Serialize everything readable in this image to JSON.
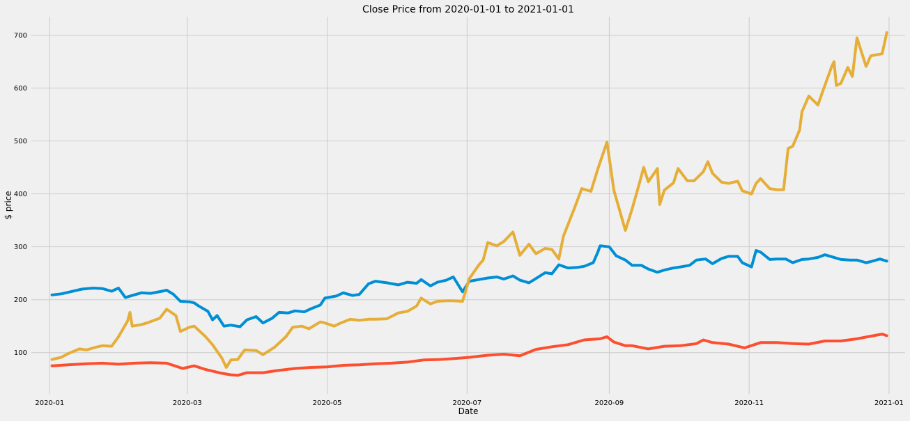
{
  "chart_data": {
    "type": "line",
    "title": "Close Price from 2020-01-01 to 2021-01-01",
    "xlabel": "Date",
    "ylabel": "$ price",
    "xlim": [
      "2019-12-24",
      "2021-01-08"
    ],
    "ylim": [
      22,
      735
    ],
    "x_ticks": [
      "2020-01",
      "2020-03",
      "2020-05",
      "2020-07",
      "2020-09",
      "2020-11",
      "2021-01"
    ],
    "y_ticks": [
      100,
      200,
      300,
      400,
      500,
      600,
      700
    ],
    "grid": true,
    "legend": "none",
    "series": [
      {
        "color": "#008fd5",
        "points": [
          [
            "2020-01-02",
            209
          ],
          [
            "2020-01-06",
            211
          ],
          [
            "2020-01-10",
            215
          ],
          [
            "2020-01-15",
            220
          ],
          [
            "2020-01-20",
            222
          ],
          [
            "2020-01-24",
            221
          ],
          [
            "2020-01-28",
            216
          ],
          [
            "2020-01-31",
            222
          ],
          [
            "2020-02-03",
            204
          ],
          [
            "2020-02-06",
            208
          ],
          [
            "2020-02-10",
            213
          ],
          [
            "2020-02-14",
            212
          ],
          [
            "2020-02-19",
            216
          ],
          [
            "2020-02-21",
            218
          ],
          [
            "2020-02-24",
            210
          ],
          [
            "2020-02-27",
            197
          ],
          [
            "2020-03-02",
            196
          ],
          [
            "2020-03-04",
            194
          ],
          [
            "2020-03-06",
            188
          ],
          [
            "2020-03-10",
            178
          ],
          [
            "2020-03-12",
            162
          ],
          [
            "2020-03-14",
            170
          ],
          [
            "2020-03-17",
            150
          ],
          [
            "2020-03-20",
            152
          ],
          [
            "2020-03-24",
            149
          ],
          [
            "2020-03-27",
            162
          ],
          [
            "2020-03-31",
            168
          ],
          [
            "2020-04-03",
            156
          ],
          [
            "2020-04-07",
            165
          ],
          [
            "2020-04-10",
            176
          ],
          [
            "2020-04-14",
            175
          ],
          [
            "2020-04-17",
            179
          ],
          [
            "2020-04-21",
            177
          ],
          [
            "2020-04-24",
            183
          ],
          [
            "2020-04-28",
            190
          ],
          [
            "2020-04-30",
            203
          ],
          [
            "2020-05-05",
            207
          ],
          [
            "2020-05-08",
            213
          ],
          [
            "2020-05-12",
            208
          ],
          [
            "2020-05-15",
            210
          ],
          [
            "2020-05-19",
            230
          ],
          [
            "2020-05-22",
            235
          ],
          [
            "2020-05-27",
            232
          ],
          [
            "2020-06-01",
            228
          ],
          [
            "2020-06-05",
            233
          ],
          [
            "2020-06-09",
            231
          ],
          [
            "2020-06-11",
            238
          ],
          [
            "2020-06-15",
            226
          ],
          [
            "2020-06-18",
            233
          ],
          [
            "2020-06-22",
            237
          ],
          [
            "2020-06-25",
            243
          ],
          [
            "2020-06-29",
            215
          ],
          [
            "2020-07-02",
            235
          ],
          [
            "2020-07-06",
            238
          ],
          [
            "2020-07-10",
            241
          ],
          [
            "2020-07-14",
            243
          ],
          [
            "2020-07-17",
            239
          ],
          [
            "2020-07-21",
            245
          ],
          [
            "2020-07-24",
            237
          ],
          [
            "2020-07-28",
            232
          ],
          [
            "2020-07-31",
            240
          ],
          [
            "2020-08-04",
            251
          ],
          [
            "2020-08-07",
            249
          ],
          [
            "2020-08-10",
            266
          ],
          [
            "2020-08-14",
            260
          ],
          [
            "2020-08-18",
            261
          ],
          [
            "2020-08-21",
            263
          ],
          [
            "2020-08-25",
            270
          ],
          [
            "2020-08-27",
            290
          ],
          [
            "2020-08-28",
            302
          ],
          [
            "2020-09-01",
            300
          ],
          [
            "2020-09-04",
            283
          ],
          [
            "2020-09-08",
            275
          ],
          [
            "2020-09-11",
            265
          ],
          [
            "2020-09-15",
            265
          ],
          [
            "2020-09-18",
            258
          ],
          [
            "2020-09-22",
            252
          ],
          [
            "2020-09-25",
            256
          ],
          [
            "2020-09-29",
            260
          ],
          [
            "2020-10-02",
            262
          ],
          [
            "2020-10-06",
            265
          ],
          [
            "2020-10-09",
            275
          ],
          [
            "2020-10-13",
            277
          ],
          [
            "2020-10-16",
            268
          ],
          [
            "2020-10-20",
            278
          ],
          [
            "2020-10-23",
            282
          ],
          [
            "2020-10-27",
            282
          ],
          [
            "2020-10-29",
            270
          ],
          [
            "2020-11-02",
            262
          ],
          [
            "2020-11-04",
            293
          ],
          [
            "2020-11-06",
            290
          ],
          [
            "2020-11-10",
            276
          ],
          [
            "2020-11-13",
            277
          ],
          [
            "2020-11-17",
            277
          ],
          [
            "2020-11-20",
            270
          ],
          [
            "2020-11-24",
            276
          ],
          [
            "2020-11-27",
            277
          ],
          [
            "2020-12-01",
            280
          ],
          [
            "2020-12-04",
            285
          ],
          [
            "2020-12-08",
            280
          ],
          [
            "2020-12-11",
            276
          ],
          [
            "2020-12-15",
            275
          ],
          [
            "2020-12-18",
            275
          ],
          [
            "2020-12-22",
            270
          ],
          [
            "2020-12-24",
            272
          ],
          [
            "2020-12-28",
            277
          ],
          [
            "2020-12-31",
            273
          ]
        ]
      },
      {
        "color": "#e5ae38",
        "points": [
          [
            "2020-01-02",
            87
          ],
          [
            "2020-01-06",
            91
          ],
          [
            "2020-01-09",
            98
          ],
          [
            "2020-01-14",
            107
          ],
          [
            "2020-01-17",
            105
          ],
          [
            "2020-01-21",
            110
          ],
          [
            "2020-01-24",
            113
          ],
          [
            "2020-01-28",
            112
          ],
          [
            "2020-01-31",
            130
          ],
          [
            "2020-02-04",
            160
          ],
          [
            "2020-02-05",
            176
          ],
          [
            "2020-02-06",
            150
          ],
          [
            "2020-02-10",
            153
          ],
          [
            "2020-02-13",
            157
          ],
          [
            "2020-02-18",
            165
          ],
          [
            "2020-02-21",
            182
          ],
          [
            "2020-02-25",
            170
          ],
          [
            "2020-02-27",
            140
          ],
          [
            "2020-03-02",
            148
          ],
          [
            "2020-03-04",
            150
          ],
          [
            "2020-03-09",
            130
          ],
          [
            "2020-03-12",
            115
          ],
          [
            "2020-03-16",
            90
          ],
          [
            "2020-03-18",
            72
          ],
          [
            "2020-03-20",
            86
          ],
          [
            "2020-03-23",
            87
          ],
          [
            "2020-03-26",
            105
          ],
          [
            "2020-03-31",
            104
          ],
          [
            "2020-04-03",
            96
          ],
          [
            "2020-04-08",
            110
          ],
          [
            "2020-04-13",
            130
          ],
          [
            "2020-04-16",
            148
          ],
          [
            "2020-04-20",
            150
          ],
          [
            "2020-04-23",
            145
          ],
          [
            "2020-04-28",
            158
          ],
          [
            "2020-04-30",
            156
          ],
          [
            "2020-05-04",
            150
          ],
          [
            "2020-05-07",
            156
          ],
          [
            "2020-05-11",
            163
          ],
          [
            "2020-05-15",
            161
          ],
          [
            "2020-05-19",
            163
          ],
          [
            "2020-05-22",
            163
          ],
          [
            "2020-05-27",
            164
          ],
          [
            "2020-06-01",
            175
          ],
          [
            "2020-06-05",
            178
          ],
          [
            "2020-06-09",
            188
          ],
          [
            "2020-06-11",
            203
          ],
          [
            "2020-06-15",
            192
          ],
          [
            "2020-06-18",
            197
          ],
          [
            "2020-06-22",
            198
          ],
          [
            "2020-06-25",
            198
          ],
          [
            "2020-06-29",
            197
          ],
          [
            "2020-07-02",
            240
          ],
          [
            "2020-07-06",
            265
          ],
          [
            "2020-07-08",
            275
          ],
          [
            "2020-07-10",
            308
          ],
          [
            "2020-07-14",
            302
          ],
          [
            "2020-07-17",
            310
          ],
          [
            "2020-07-21",
            328
          ],
          [
            "2020-07-24",
            284
          ],
          [
            "2020-07-28",
            305
          ],
          [
            "2020-07-31",
            287
          ],
          [
            "2020-08-04",
            297
          ],
          [
            "2020-08-07",
            295
          ],
          [
            "2020-08-10",
            277
          ],
          [
            "2020-08-12",
            320
          ],
          [
            "2020-08-17",
            375
          ],
          [
            "2020-08-20",
            410
          ],
          [
            "2020-08-24",
            405
          ],
          [
            "2020-08-27",
            447
          ],
          [
            "2020-08-31",
            498
          ],
          [
            "2020-09-03",
            407
          ],
          [
            "2020-09-08",
            331
          ],
          [
            "2020-09-11",
            372
          ],
          [
            "2020-09-14",
            418
          ],
          [
            "2020-09-16",
            450
          ],
          [
            "2020-09-18",
            423
          ],
          [
            "2020-09-22",
            448
          ],
          [
            "2020-09-23",
            380
          ],
          [
            "2020-09-25",
            407
          ],
          [
            "2020-09-29",
            421
          ],
          [
            "2020-10-01",
            448
          ],
          [
            "2020-10-05",
            425
          ],
          [
            "2020-10-08",
            425
          ],
          [
            "2020-10-12",
            442
          ],
          [
            "2020-10-14",
            461
          ],
          [
            "2020-10-16",
            439
          ],
          [
            "2020-10-20",
            422
          ],
          [
            "2020-10-23",
            420
          ],
          [
            "2020-10-27",
            424
          ],
          [
            "2020-10-29",
            406
          ],
          [
            "2020-11-02",
            400
          ],
          [
            "2020-11-04",
            420
          ],
          [
            "2020-11-06",
            429
          ],
          [
            "2020-11-10",
            410
          ],
          [
            "2020-11-13",
            408
          ],
          [
            "2020-11-16",
            408
          ],
          [
            "2020-11-18",
            486
          ],
          [
            "2020-11-20",
            490
          ],
          [
            "2020-11-23",
            521
          ],
          [
            "2020-11-24",
            555
          ],
          [
            "2020-11-27",
            585
          ],
          [
            "2020-12-01",
            568
          ],
          [
            "2020-12-03",
            593
          ],
          [
            "2020-12-07",
            641
          ],
          [
            "2020-12-08",
            650
          ],
          [
            "2020-12-09",
            605
          ],
          [
            "2020-12-11",
            609
          ],
          [
            "2020-12-14",
            639
          ],
          [
            "2020-12-16",
            622
          ],
          [
            "2020-12-18",
            695
          ],
          [
            "2020-12-22",
            641
          ],
          [
            "2020-12-24",
            661
          ],
          [
            "2020-12-29",
            665
          ],
          [
            "2020-12-31",
            705
          ]
        ]
      },
      {
        "color": "#fc4f30",
        "points": [
          [
            "2020-01-02",
            75
          ],
          [
            "2020-01-09",
            77
          ],
          [
            "2020-01-17",
            79
          ],
          [
            "2020-01-24",
            80
          ],
          [
            "2020-01-31",
            78
          ],
          [
            "2020-02-07",
            80
          ],
          [
            "2020-02-14",
            81
          ],
          [
            "2020-02-21",
            80
          ],
          [
            "2020-02-28",
            70
          ],
          [
            "2020-03-04",
            75
          ],
          [
            "2020-03-09",
            68
          ],
          [
            "2020-03-12",
            65
          ],
          [
            "2020-03-16",
            61
          ],
          [
            "2020-03-20",
            58
          ],
          [
            "2020-03-23",
            57
          ],
          [
            "2020-03-27",
            62
          ],
          [
            "2020-04-03",
            62
          ],
          [
            "2020-04-09",
            66
          ],
          [
            "2020-04-17",
            70
          ],
          [
            "2020-04-24",
            72
          ],
          [
            "2020-05-01",
            73
          ],
          [
            "2020-05-08",
            76
          ],
          [
            "2020-05-15",
            77
          ],
          [
            "2020-05-22",
            79
          ],
          [
            "2020-05-29",
            80
          ],
          [
            "2020-06-05",
            82
          ],
          [
            "2020-06-12",
            86
          ],
          [
            "2020-06-19",
            87
          ],
          [
            "2020-06-26",
            89
          ],
          [
            "2020-07-02",
            91
          ],
          [
            "2020-07-10",
            95
          ],
          [
            "2020-07-17",
            97
          ],
          [
            "2020-07-24",
            94
          ],
          [
            "2020-07-31",
            106
          ],
          [
            "2020-08-07",
            111
          ],
          [
            "2020-08-14",
            115
          ],
          [
            "2020-08-21",
            124
          ],
          [
            "2020-08-28",
            126
          ],
          [
            "2020-08-31",
            130
          ],
          [
            "2020-09-03",
            120
          ],
          [
            "2020-09-08",
            113
          ],
          [
            "2020-09-11",
            113
          ],
          [
            "2020-09-18",
            107
          ],
          [
            "2020-09-25",
            112
          ],
          [
            "2020-10-02",
            113
          ],
          [
            "2020-10-09",
            117
          ],
          [
            "2020-10-12",
            124
          ],
          [
            "2020-10-16",
            119
          ],
          [
            "2020-10-23",
            116
          ],
          [
            "2020-10-30",
            109
          ],
          [
            "2020-11-06",
            119
          ],
          [
            "2020-11-13",
            119
          ],
          [
            "2020-11-20",
            117
          ],
          [
            "2020-11-27",
            116
          ],
          [
            "2020-12-04",
            122
          ],
          [
            "2020-12-11",
            122
          ],
          [
            "2020-12-18",
            126
          ],
          [
            "2020-12-24",
            131
          ],
          [
            "2020-12-29",
            135
          ],
          [
            "2020-12-31",
            132
          ]
        ]
      }
    ]
  }
}
